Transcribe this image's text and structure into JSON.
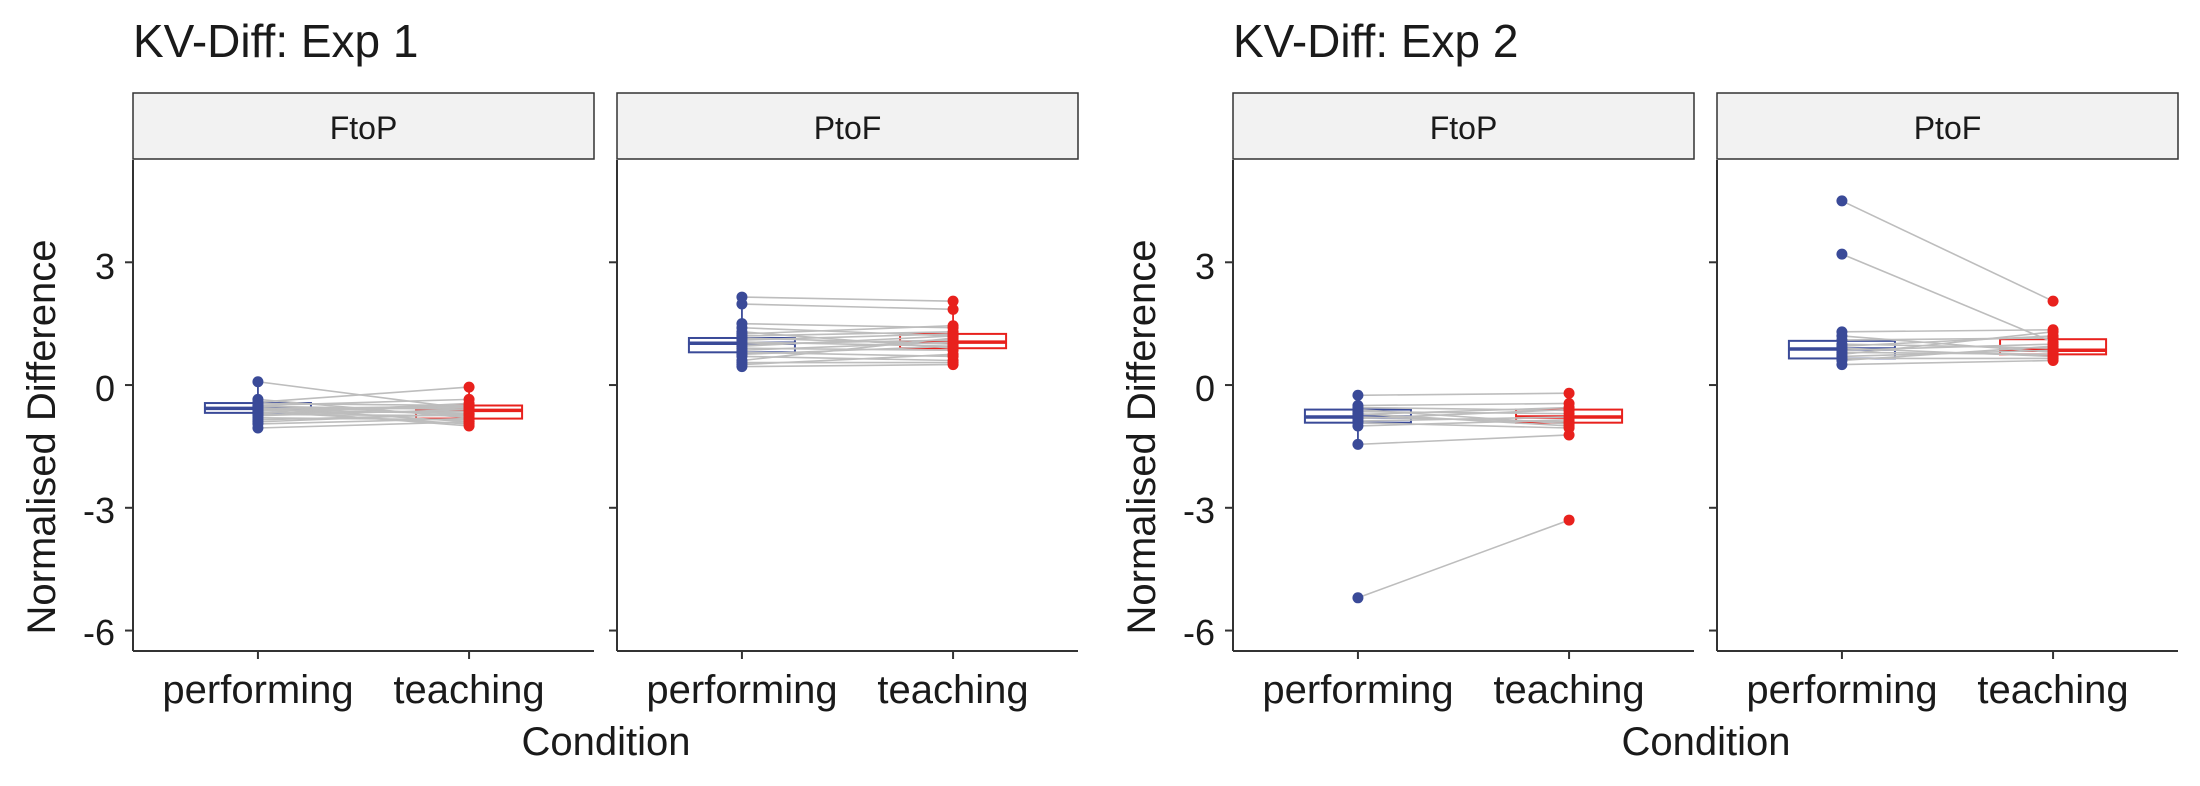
{
  "colors": {
    "performing": "#3a4a98",
    "teaching": "#e8211d",
    "pair_line": "#bdbdbd",
    "strip_fill": "#f2f2f2",
    "axis": "#333333"
  },
  "chart_data": [
    {
      "type": "scatter",
      "title": "KV-Diff: Exp 1",
      "xlabel": "Condition",
      "ylabel": "Normalised Difference",
      "categories": [
        "performing",
        "teaching"
      ],
      "ylim": [
        -6.5,
        5.5
      ],
      "yticks": [
        3,
        0,
        -3,
        -6
      ],
      "ytick_labels": [
        "3",
        "0",
        "-3",
        "-6"
      ],
      "grid": false,
      "panels": [
        {
          "label": "FtoP",
          "box": {
            "performing": {
              "min": -1.05,
              "q1": -0.68,
              "median": -0.57,
              "q3": -0.44,
              "max": 0.08
            },
            "teaching": {
              "min": -1.0,
              "q1": -0.82,
              "median": -0.62,
              "q3": -0.5,
              "max": -0.05
            }
          },
          "pairs": [
            [
              0.08,
              -0.58
            ],
            [
              -0.42,
              -0.05
            ],
            [
              -0.35,
              -0.8
            ],
            [
              -0.45,
              -0.5
            ],
            [
              -0.5,
              -0.72
            ],
            [
              -0.52,
              -0.6
            ],
            [
              -0.55,
              -0.9
            ],
            [
              -0.58,
              -0.52
            ],
            [
              -0.6,
              -0.7
            ],
            [
              -0.62,
              -0.55
            ],
            [
              -0.65,
              -0.95
            ],
            [
              -0.68,
              -0.65
            ],
            [
              -0.72,
              -0.75
            ],
            [
              -0.75,
              -0.6
            ],
            [
              -0.8,
              -0.85
            ],
            [
              -0.85,
              -0.72
            ],
            [
              -0.9,
              -0.7
            ],
            [
              -0.95,
              -0.82
            ],
            [
              -1.05,
              -0.9
            ],
            [
              -0.5,
              -0.35
            ],
            [
              -0.7,
              -0.45
            ],
            [
              -0.6,
              -1.0
            ]
          ]
        },
        {
          "label": "PtoF",
          "box": {
            "performing": {
              "min": 0.45,
              "q1": 0.8,
              "median": 1.02,
              "q3": 1.15,
              "max": 2.15
            },
            "teaching": {
              "min": 0.5,
              "q1": 0.9,
              "median": 1.05,
              "q3": 1.25,
              "max": 2.05
            }
          },
          "pairs": [
            [
              2.15,
              2.05
            ],
            [
              1.98,
              1.85
            ],
            [
              1.5,
              1.4
            ],
            [
              1.4,
              1.2
            ],
            [
              1.3,
              0.9
            ],
            [
              1.2,
              1.3
            ],
            [
              1.15,
              1.0
            ],
            [
              1.1,
              1.25
            ],
            [
              1.05,
              0.95
            ],
            [
              1.0,
              1.1
            ],
            [
              0.95,
              1.2
            ],
            [
              0.9,
              0.85
            ],
            [
              0.85,
              1.05
            ],
            [
              0.8,
              0.7
            ],
            [
              0.75,
              0.95
            ],
            [
              0.7,
              0.6
            ],
            [
              0.6,
              1.15
            ],
            [
              0.55,
              0.55
            ],
            [
              0.5,
              0.75
            ],
            [
              0.45,
              0.5
            ],
            [
              1.25,
              1.45
            ]
          ]
        }
      ]
    },
    {
      "type": "scatter",
      "title": "KV-Diff: Exp 2",
      "xlabel": "Condition",
      "ylabel": "Normalised Difference",
      "categories": [
        "performing",
        "teaching"
      ],
      "ylim": [
        -6.5,
        5.5
      ],
      "yticks": [
        3,
        0,
        -3,
        -6
      ],
      "ytick_labels": [
        "3",
        "0",
        "-3",
        "-6"
      ],
      "grid": false,
      "panels": [
        {
          "label": "FtoP",
          "box": {
            "performing": {
              "min": -1.45,
              "q1": -0.92,
              "median": -0.78,
              "q3": -0.6,
              "max": -0.25
            },
            "teaching": {
              "min": -1.22,
              "q1": -0.92,
              "median": -0.78,
              "q3": -0.6,
              "max": -0.2
            }
          },
          "pairs": [
            [
              -0.25,
              -0.2
            ],
            [
              -0.5,
              -0.45
            ],
            [
              -0.6,
              -0.95
            ],
            [
              -0.65,
              -0.7
            ],
            [
              -0.72,
              -0.55
            ],
            [
              -0.78,
              -0.9
            ],
            [
              -0.82,
              -0.6
            ],
            [
              -0.88,
              -0.78
            ],
            [
              -0.92,
              -1.05
            ],
            [
              -1.0,
              -0.85
            ],
            [
              -1.45,
              -1.22
            ],
            [
              -5.2,
              -3.3
            ],
            [
              -0.55,
              -0.62
            ],
            [
              -0.7,
              -1.0
            ]
          ]
        },
        {
          "label": "PtoF",
          "box": {
            "performing": {
              "min": 0.5,
              "q1": 0.65,
              "median": 0.88,
              "q3": 1.08,
              "max": 1.3
            },
            "teaching": {
              "min": 0.6,
              "q1": 0.75,
              "median": 0.85,
              "q3": 1.12,
              "max": 1.35
            }
          },
          "pairs": [
            [
              4.5,
              2.05
            ],
            [
              3.2,
              1.05
            ],
            [
              1.3,
              1.35
            ],
            [
              1.2,
              0.8
            ],
            [
              1.1,
              1.15
            ],
            [
              1.0,
              0.9
            ],
            [
              0.95,
              1.2
            ],
            [
              0.9,
              0.7
            ],
            [
              0.85,
              1.0
            ],
            [
              0.8,
              0.75
            ],
            [
              0.75,
              1.3
            ],
            [
              0.7,
              0.85
            ],
            [
              0.65,
              0.65
            ],
            [
              0.6,
              0.95
            ],
            [
              0.5,
              0.6
            ]
          ]
        }
      ]
    }
  ]
}
